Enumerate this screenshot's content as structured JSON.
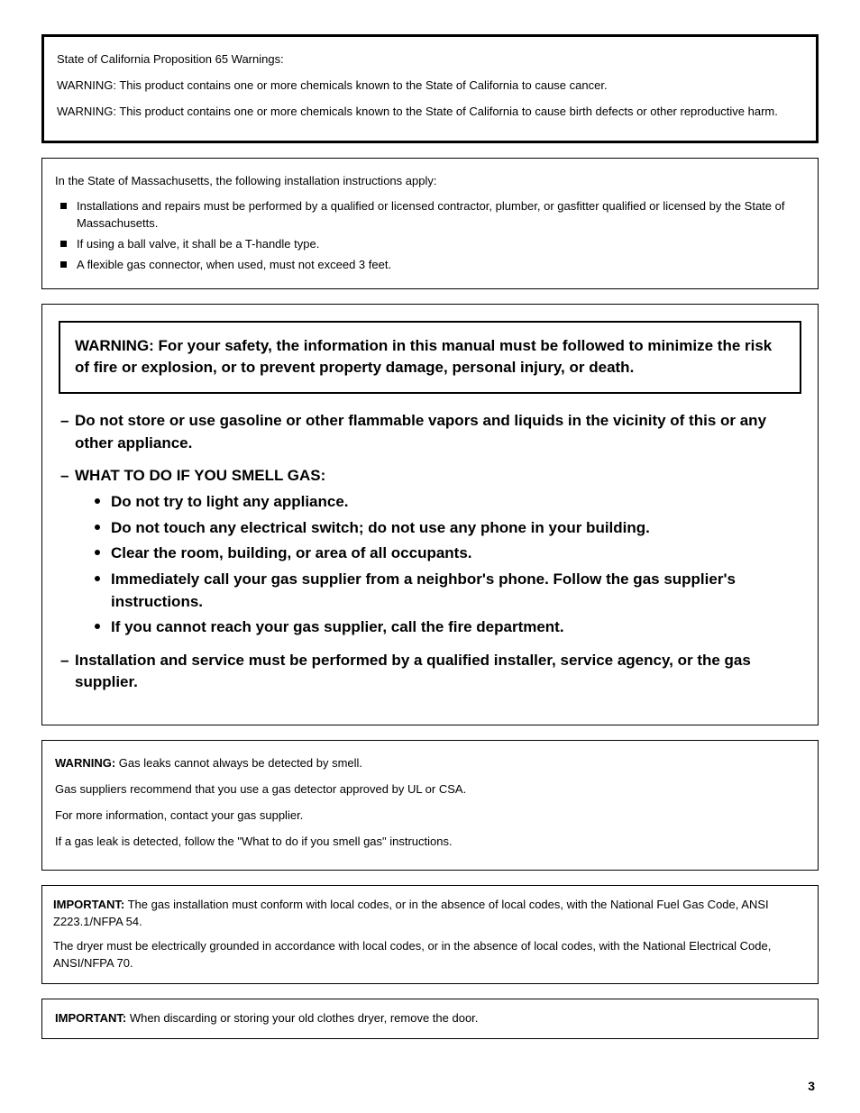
{
  "page_number": "3",
  "prop65_box": {
    "heading": "State of California Proposition 65 Warnings:",
    "line1": "WARNING: This product contains one or more chemicals known to the State of California to cause cancer.",
    "line2": "WARNING: This product contains one or more chemicals known to the State of California to cause birth defects or other reproductive harm."
  },
  "mass_box": {
    "intro": "In the State of Massachusetts, the following installation instructions apply:",
    "items": [
      "Installations and repairs must be performed by a qualified or licensed contractor, plumber, or gasfitter qualified or licensed by the State of Massachusetts.",
      "If using a ball valve, it shall be a T-handle type.",
      "A flexible gas connector, when used, must not exceed 3 feet."
    ]
  },
  "main_warning": {
    "inner_text": "WARNING: For your safety, the information in this manual must be followed to minimize the risk of fire or explosion, or to prevent property damage, personal injury, or death.",
    "dash1": "Do not store or use gasoline or other flammable vapors and liquids in the vicinity of this or any other appliance.",
    "gas_heading": "WHAT TO DO IF YOU SMELL GAS:",
    "gas_bullets": [
      "Do not try to light any appliance.",
      "Do not touch any electrical switch; do not use any phone in your building.",
      "Clear the room, building, or area of all occupants.",
      "Immediately call your gas supplier from a neighbor's phone. Follow the gas supplier's instructions.",
      "If you cannot reach your gas supplier, call the fire department."
    ],
    "dash3": "Installation and service must be performed by a qualified installer, service agency, or the gas supplier."
  },
  "gas_detect_box": {
    "lead": "WARNING:",
    "line1_rest": " Gas leaks cannot always be detected by smell.",
    "line2": "Gas suppliers recommend that you use a gas detector approved by UL or CSA.",
    "line3": "For more information, contact your gas supplier.",
    "line4": "If a gas leak is detected, follow the \"What to do if you smell gas\" instructions."
  },
  "codes_box": {
    "lead": "IMPORTANT:",
    "line1_rest": " The gas installation must conform with local codes, or in the absence of local codes, with the National Fuel Gas Code, ANSI Z223.1/NFPA 54.",
    "line2": "The dryer must be electrically grounded in accordance with local codes, or in the absence of local codes, with the National Electrical Code, ANSI/NFPA 70."
  },
  "discard_box": {
    "lead": "IMPORTANT:",
    "rest": " When discarding or storing your old clothes dryer, remove the door."
  }
}
